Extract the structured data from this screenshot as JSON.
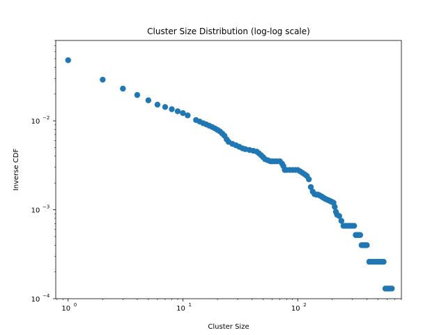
{
  "chart_data": {
    "type": "scatter",
    "title": "Cluster Size Distribution (log-log scale)",
    "xlabel": "Cluster Size",
    "ylabel": "Inverse CDF",
    "x_scale": "log",
    "y_scale": "log",
    "xlim": [
      0.78,
      800
    ],
    "ylim": [
      0.0001,
      0.08
    ],
    "grid": false,
    "marker_color": "#1f77b4",
    "x_ticks": [
      {
        "value": 1,
        "base": "10",
        "exp": "0"
      },
      {
        "value": 10,
        "base": "10",
        "exp": "1"
      },
      {
        "value": 100,
        "base": "10",
        "exp": "2"
      }
    ],
    "y_ticks": [
      {
        "value": 0.0001,
        "base": "10",
        "exp": "−4"
      },
      {
        "value": 0.001,
        "base": "10",
        "exp": "−3"
      },
      {
        "value": 0.01,
        "base": "10",
        "exp": "−2"
      }
    ],
    "series": [
      {
        "x": [
          1,
          2,
          3,
          4,
          5,
          6,
          7,
          8,
          9,
          10,
          11,
          13,
          14,
          15,
          16,
          17,
          18,
          19,
          20,
          21,
          22,
          23,
          24,
          25,
          27,
          29,
          31,
          33,
          35,
          38,
          41,
          44,
          46,
          48,
          50,
          52,
          55,
          58,
          60,
          63,
          66,
          70,
          73,
          75,
          77,
          80,
          85,
          90,
          95,
          100,
          105,
          110,
          115,
          120,
          125,
          130,
          135,
          140,
          145,
          150,
          155,
          160,
          165,
          170,
          175,
          180,
          185,
          190,
          195,
          200,
          205,
          210,
          215,
          220,
          230,
          240,
          250,
          260,
          270,
          280,
          290,
          300,
          310,
          320,
          330,
          340,
          350,
          360,
          370,
          380,
          390,
          400,
          420,
          440,
          460,
          480,
          500,
          520,
          540,
          560,
          580,
          600,
          620,
          640,
          660
        ],
        "y": [
          0.048,
          0.029,
          0.023,
          0.0195,
          0.017,
          0.0152,
          0.0143,
          0.0135,
          0.0128,
          0.0122,
          0.0115,
          0.0102,
          0.0098,
          0.0094,
          0.0091,
          0.0088,
          0.0085,
          0.0082,
          0.0079,
          0.0076,
          0.0072,
          0.0068,
          0.0062,
          0.0058,
          0.0055,
          0.0053,
          0.0051,
          0.0049,
          0.0048,
          0.0047,
          0.0046,
          0.0045,
          0.0043,
          0.0041,
          0.0039,
          0.0037,
          0.0036,
          0.0035,
          0.0035,
          0.0035,
          0.0035,
          0.0035,
          0.0033,
          0.0031,
          0.0028,
          0.0028,
          0.0028,
          0.0028,
          0.0028,
          0.0028,
          0.0027,
          0.0026,
          0.0025,
          0.0024,
          0.0022,
          0.0018,
          0.0016,
          0.0015,
          0.00148,
          0.00148,
          0.00145,
          0.00142,
          0.00138,
          0.00135,
          0.00132,
          0.0013,
          0.00128,
          0.00126,
          0.00124,
          0.00122,
          0.0012,
          0.00108,
          0.00095,
          0.00088,
          0.00085,
          0.00075,
          0.00066,
          0.00066,
          0.00066,
          0.00066,
          0.00066,
          0.00066,
          0.00066,
          0.00052,
          0.00052,
          0.00052,
          0.00052,
          0.0004,
          0.0004,
          0.0004,
          0.0004,
          0.0004,
          0.00026,
          0.00026,
          0.00026,
          0.00026,
          0.00026,
          0.00026,
          0.00026,
          0.00026,
          0.00013,
          0.00013,
          0.00013,
          0.00013,
          0.00013
        ]
      }
    ]
  }
}
